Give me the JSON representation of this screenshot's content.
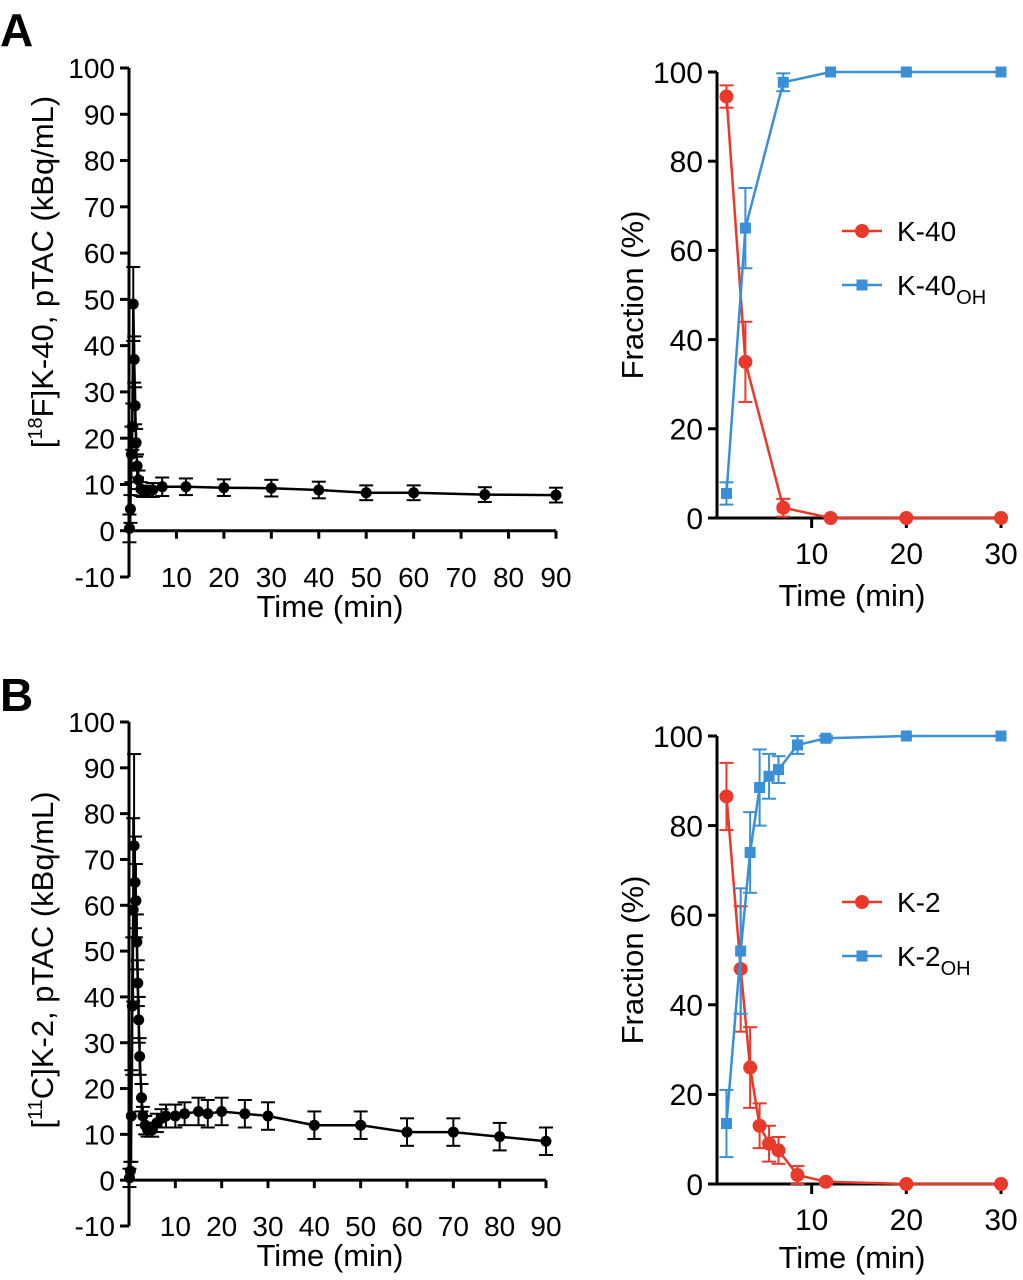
{
  "panels": [
    {
      "label": "A"
    },
    {
      "label": "B"
    }
  ],
  "colors": {
    "parent": "#e8392b",
    "metabolite": "#3a8fd6",
    "ptac": "#000000"
  },
  "chart_data": [
    {
      "id": "A-ptac",
      "panel": "A",
      "type": "line",
      "xlabel": "Time (min)",
      "ylabel_tracer": "[18F]K-40, pTAC (kBq/mL)",
      "ylabel_iso": "18",
      "ylabel_elem": "F",
      "ylabel_rest": "]K-40, pTAC (kBq/mL)",
      "xlim": [
        0,
        90
      ],
      "ylim": [
        -10,
        100
      ],
      "xticks": [
        10,
        20,
        30,
        40,
        50,
        60,
        70,
        80,
        90
      ],
      "yticks": [
        -10,
        0,
        10,
        20,
        30,
        40,
        50,
        60,
        70,
        80,
        90,
        100
      ],
      "grid": false,
      "series": [
        {
          "color": "ptac",
          "marker": "circle",
          "x": [
            0.1,
            0.3,
            0.5,
            0.7,
            0.9,
            1.1,
            1.3,
            1.5,
            1.7,
            2.0,
            2.5,
            3.0,
            4.0,
            5.0,
            7.0,
            12.0,
            20.0,
            30.0,
            40.0,
            50.0,
            60.0,
            75.0,
            90.0
          ],
          "y": [
            0.5,
            4.7,
            16.5,
            22.5,
            49.0,
            37.0,
            27.0,
            19.0,
            14.0,
            11.0,
            9.0,
            8.5,
            8.5,
            8.8,
            9.5,
            9.5,
            9.3,
            9.2,
            8.8,
            8.2,
            8.2,
            7.8,
            7.7
          ],
          "err": [
            3.0,
            3.0,
            6.0,
            5.0,
            8.0,
            5.0,
            4.0,
            3.0,
            2.5,
            2.0,
            1.5,
            1.2,
            1.2,
            1.5,
            2.0,
            1.8,
            1.8,
            1.8,
            1.8,
            1.6,
            1.6,
            1.6,
            1.6
          ]
        }
      ]
    },
    {
      "id": "A-fraction",
      "panel": "A",
      "type": "line",
      "xlabel": "Time (min)",
      "ylabel": "Fraction (%)",
      "xlim": [
        0,
        30
      ],
      "ylim": [
        0,
        100
      ],
      "xticks": [
        10,
        20,
        30
      ],
      "yticks": [
        0,
        20,
        40,
        60,
        80,
        100
      ],
      "grid": false,
      "legend_position": "right",
      "series": [
        {
          "name": "K-40",
          "name_sub": "",
          "color": "parent",
          "marker": "circle",
          "x": [
            1,
            3,
            7,
            12,
            20,
            30
          ],
          "y": [
            94.5,
            35.0,
            2.3,
            0.0,
            0.0,
            0.0
          ],
          "err": [
            2.5,
            9.0,
            2.0,
            0.0,
            0.0,
            0.0
          ]
        },
        {
          "name": "K-40",
          "name_sub": "OH",
          "color": "metabolite",
          "marker": "square",
          "x": [
            1,
            3,
            7,
            12,
            20,
            30
          ],
          "y": [
            5.5,
            65.0,
            97.7,
            100.0,
            100.0,
            100.0
          ],
          "err": [
            2.5,
            9.0,
            2.0,
            0.0,
            0.0,
            0.0
          ]
        }
      ]
    },
    {
      "id": "B-ptac",
      "panel": "B",
      "type": "line",
      "xlabel": "Time (min)",
      "ylabel_tracer": "[11C]K-2, pTAC (kBq/mL)",
      "ylabel_iso": "11",
      "ylabel_elem": "C",
      "ylabel_rest": "]K-2, pTAC (kBq/mL)",
      "xlim": [
        0,
        90
      ],
      "ylim": [
        -10,
        100
      ],
      "xticks": [
        10,
        20,
        30,
        40,
        50,
        60,
        70,
        80,
        90
      ],
      "yticks": [
        -10,
        0,
        10,
        20,
        30,
        40,
        50,
        60,
        70,
        80,
        90,
        100
      ],
      "grid": false,
      "series": [
        {
          "color": "ptac",
          "marker": "circle",
          "x": [
            0.1,
            0.3,
            0.5,
            0.7,
            0.9,
            1.1,
            1.3,
            1.5,
            1.7,
            1.9,
            2.1,
            2.3,
            2.7,
            3,
            3.5,
            4,
            5,
            6,
            7,
            8,
            10,
            12,
            15,
            17,
            20,
            25,
            30,
            40,
            50,
            60,
            70,
            80,
            90
          ],
          "y": [
            0.5,
            2.0,
            14.0,
            38.0,
            59.0,
            73.0,
            65.0,
            61.0,
            52.0,
            43.0,
            35.0,
            27.0,
            18.0,
            14.0,
            12.0,
            11.0,
            11.0,
            12.5,
            13.5,
            14.0,
            14.0,
            14.5,
            15.0,
            14.5,
            15.0,
            14.5,
            14.0,
            12.0,
            12.0,
            10.5,
            10.5,
            9.5,
            8.5
          ],
          "err": [
            2.0,
            2.0,
            10.0,
            15.0,
            20.0,
            20.0,
            10.0,
            8.0,
            6.0,
            5.0,
            5.0,
            4.0,
            3.0,
            2.0,
            2.0,
            1.5,
            1.5,
            2.0,
            2.0,
            2.5,
            2.5,
            2.5,
            3.0,
            3.0,
            3.0,
            3.0,
            3.0,
            3.0,
            3.0,
            3.0,
            3.0,
            3.0,
            3.0
          ]
        }
      ]
    },
    {
      "id": "B-fraction",
      "panel": "B",
      "type": "line",
      "xlabel": "Time (min)",
      "ylabel": "Fraction (%)",
      "xlim": [
        0,
        30
      ],
      "ylim": [
        0,
        100
      ],
      "xticks": [
        10,
        20,
        30
      ],
      "yticks": [
        0,
        20,
        40,
        60,
        80,
        100
      ],
      "grid": false,
      "legend_position": "right",
      "series": [
        {
          "name": "K-2",
          "name_sub": "",
          "color": "parent",
          "marker": "circle",
          "x": [
            1,
            2.5,
            3.5,
            4.5,
            5.5,
            6.5,
            8.5,
            11.5,
            20,
            30
          ],
          "y": [
            86.5,
            48.0,
            26.0,
            13.0,
            9.0,
            7.5,
            2.0,
            0.5,
            0.0,
            0.0
          ],
          "err": [
            7.5,
            14.0,
            9.0,
            5.0,
            4.0,
            3.0,
            2.0,
            0.5,
            0.0,
            0.0
          ]
        },
        {
          "name": "K-2",
          "name_sub": "OH",
          "color": "metabolite",
          "marker": "square",
          "x": [
            1,
            2.5,
            3.5,
            4.5,
            5.5,
            6.5,
            8.5,
            11.5,
            20,
            30
          ],
          "y": [
            13.5,
            52.0,
            74.0,
            88.5,
            91.0,
            92.5,
            98.0,
            99.5,
            100.0,
            100.0
          ],
          "err": [
            7.5,
            14.0,
            9.0,
            8.5,
            5.0,
            3.0,
            2.0,
            0.5,
            0.0,
            0.0
          ]
        }
      ]
    }
  ]
}
